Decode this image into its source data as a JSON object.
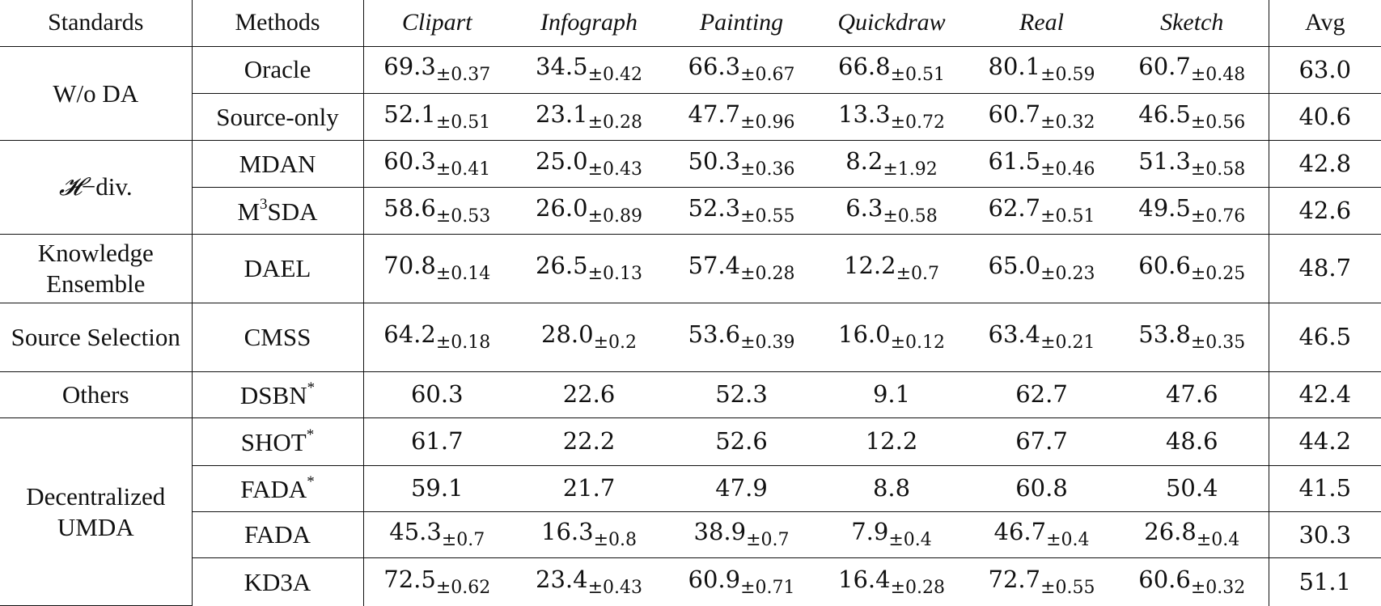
{
  "columns": {
    "standards": "Standards",
    "methods": "Methods",
    "domains": [
      "Clipart",
      "Infograph",
      "Painting",
      "Quickdraw",
      "Real",
      "Sketch"
    ],
    "avg": "Avg"
  },
  "groups": {
    "wo_da": "W/o DA",
    "hdiv_symbol": "𝓗",
    "hdiv_text": "−div.",
    "knowledge_ensemble": "Knowledge Ensemble",
    "source_selection": "Source Selection",
    "others": "Others",
    "decentralized": "Decentralized UMDA"
  },
  "rows": [
    {
      "method": "Oracle",
      "values": [
        [
          "69.3",
          "±0.37"
        ],
        [
          "34.5",
          "±0.42"
        ],
        [
          "66.3",
          "±0.67"
        ],
        [
          "66.8",
          "±0.51"
        ],
        [
          "80.1",
          "±0.59"
        ],
        [
          "60.7",
          "±0.48"
        ]
      ],
      "avg": "63.0"
    },
    {
      "method": "Source-only",
      "values": [
        [
          "52.1",
          "±0.51"
        ],
        [
          "23.1",
          "±0.28"
        ],
        [
          "47.7",
          "±0.96"
        ],
        [
          "13.3",
          "±0.72"
        ],
        [
          "60.7",
          "±0.32"
        ],
        [
          "46.5",
          "±0.56"
        ]
      ],
      "avg": "40.6"
    },
    {
      "method": "MDAN",
      "values": [
        [
          "60.3",
          "±0.41"
        ],
        [
          "25.0",
          "±0.43"
        ],
        [
          "50.3",
          "±0.36"
        ],
        [
          "8.2",
          "±1.92"
        ],
        [
          "61.5",
          "±0.46"
        ],
        [
          "51.3",
          "±0.58"
        ]
      ],
      "avg": "42.8"
    },
    {
      "method": "M",
      "method_sup": "3",
      "method_rest": "SDA",
      "values": [
        [
          "58.6",
          "±0.53"
        ],
        [
          "26.0",
          "±0.89"
        ],
        [
          "52.3",
          "±0.55"
        ],
        [
          "6.3",
          "±0.58"
        ],
        [
          "62.7",
          "±0.51"
        ],
        [
          "49.5",
          "±0.76"
        ]
      ],
      "avg": "42.6"
    },
    {
      "method": "DAEL",
      "values": [
        [
          "70.8",
          "±0.14"
        ],
        [
          "26.5",
          "±0.13"
        ],
        [
          "57.4",
          "±0.28"
        ],
        [
          "12.2",
          "±0.7"
        ],
        [
          "65.0",
          "±0.23"
        ],
        [
          "60.6",
          "±0.25"
        ]
      ],
      "avg": "48.7"
    },
    {
      "method": "CMSS",
      "values": [
        [
          "64.2",
          "±0.18"
        ],
        [
          "28.0",
          "±0.2"
        ],
        [
          "53.6",
          "±0.39"
        ],
        [
          "16.0",
          "±0.12"
        ],
        [
          "63.4",
          "±0.21"
        ],
        [
          "53.8",
          "±0.35"
        ]
      ],
      "avg": "46.5"
    },
    {
      "method": "DSBN",
      "method_sup": "*",
      "values": [
        [
          "60.3",
          ""
        ],
        [
          "22.6",
          ""
        ],
        [
          "52.3",
          ""
        ],
        [
          "9.1",
          ""
        ],
        [
          "62.7",
          ""
        ],
        [
          "47.6",
          ""
        ]
      ],
      "avg": "42.4"
    },
    {
      "method": "SHOT",
      "method_sup": "*",
      "values": [
        [
          "61.7",
          ""
        ],
        [
          "22.2",
          ""
        ],
        [
          "52.6",
          ""
        ],
        [
          "12.2",
          ""
        ],
        [
          "67.7",
          ""
        ],
        [
          "48.6",
          ""
        ]
      ],
      "avg": "44.2"
    },
    {
      "method": "FADA",
      "method_sup": "*",
      "values": [
        [
          "59.1",
          ""
        ],
        [
          "21.7",
          ""
        ],
        [
          "47.9",
          ""
        ],
        [
          "8.8",
          ""
        ],
        [
          "60.8",
          ""
        ],
        [
          "50.4",
          ""
        ]
      ],
      "avg": "41.5"
    },
    {
      "method": "FADA",
      "values": [
        [
          "45.3",
          "±0.7"
        ],
        [
          "16.3",
          "±0.8"
        ],
        [
          "38.9",
          "±0.7"
        ],
        [
          "7.9",
          "±0.4"
        ],
        [
          "46.7",
          "±0.4"
        ],
        [
          "26.8",
          "±0.4"
        ]
      ],
      "avg": "30.3"
    },
    {
      "method": "KD3A",
      "values": [
        [
          "72.5",
          "±0.62"
        ],
        [
          "23.4",
          "±0.43"
        ],
        [
          "60.9",
          "±0.71"
        ],
        [
          "16.4",
          "±0.28"
        ],
        [
          "72.7",
          "±0.55"
        ],
        [
          "60.6",
          "±0.32"
        ]
      ],
      "avg": "51.1"
    }
  ],
  "bold_cells": [
    "3-1",
    "10-0",
    "10-2",
    "10-3",
    "10-4",
    "10-5",
    "10-avg"
  ]
}
